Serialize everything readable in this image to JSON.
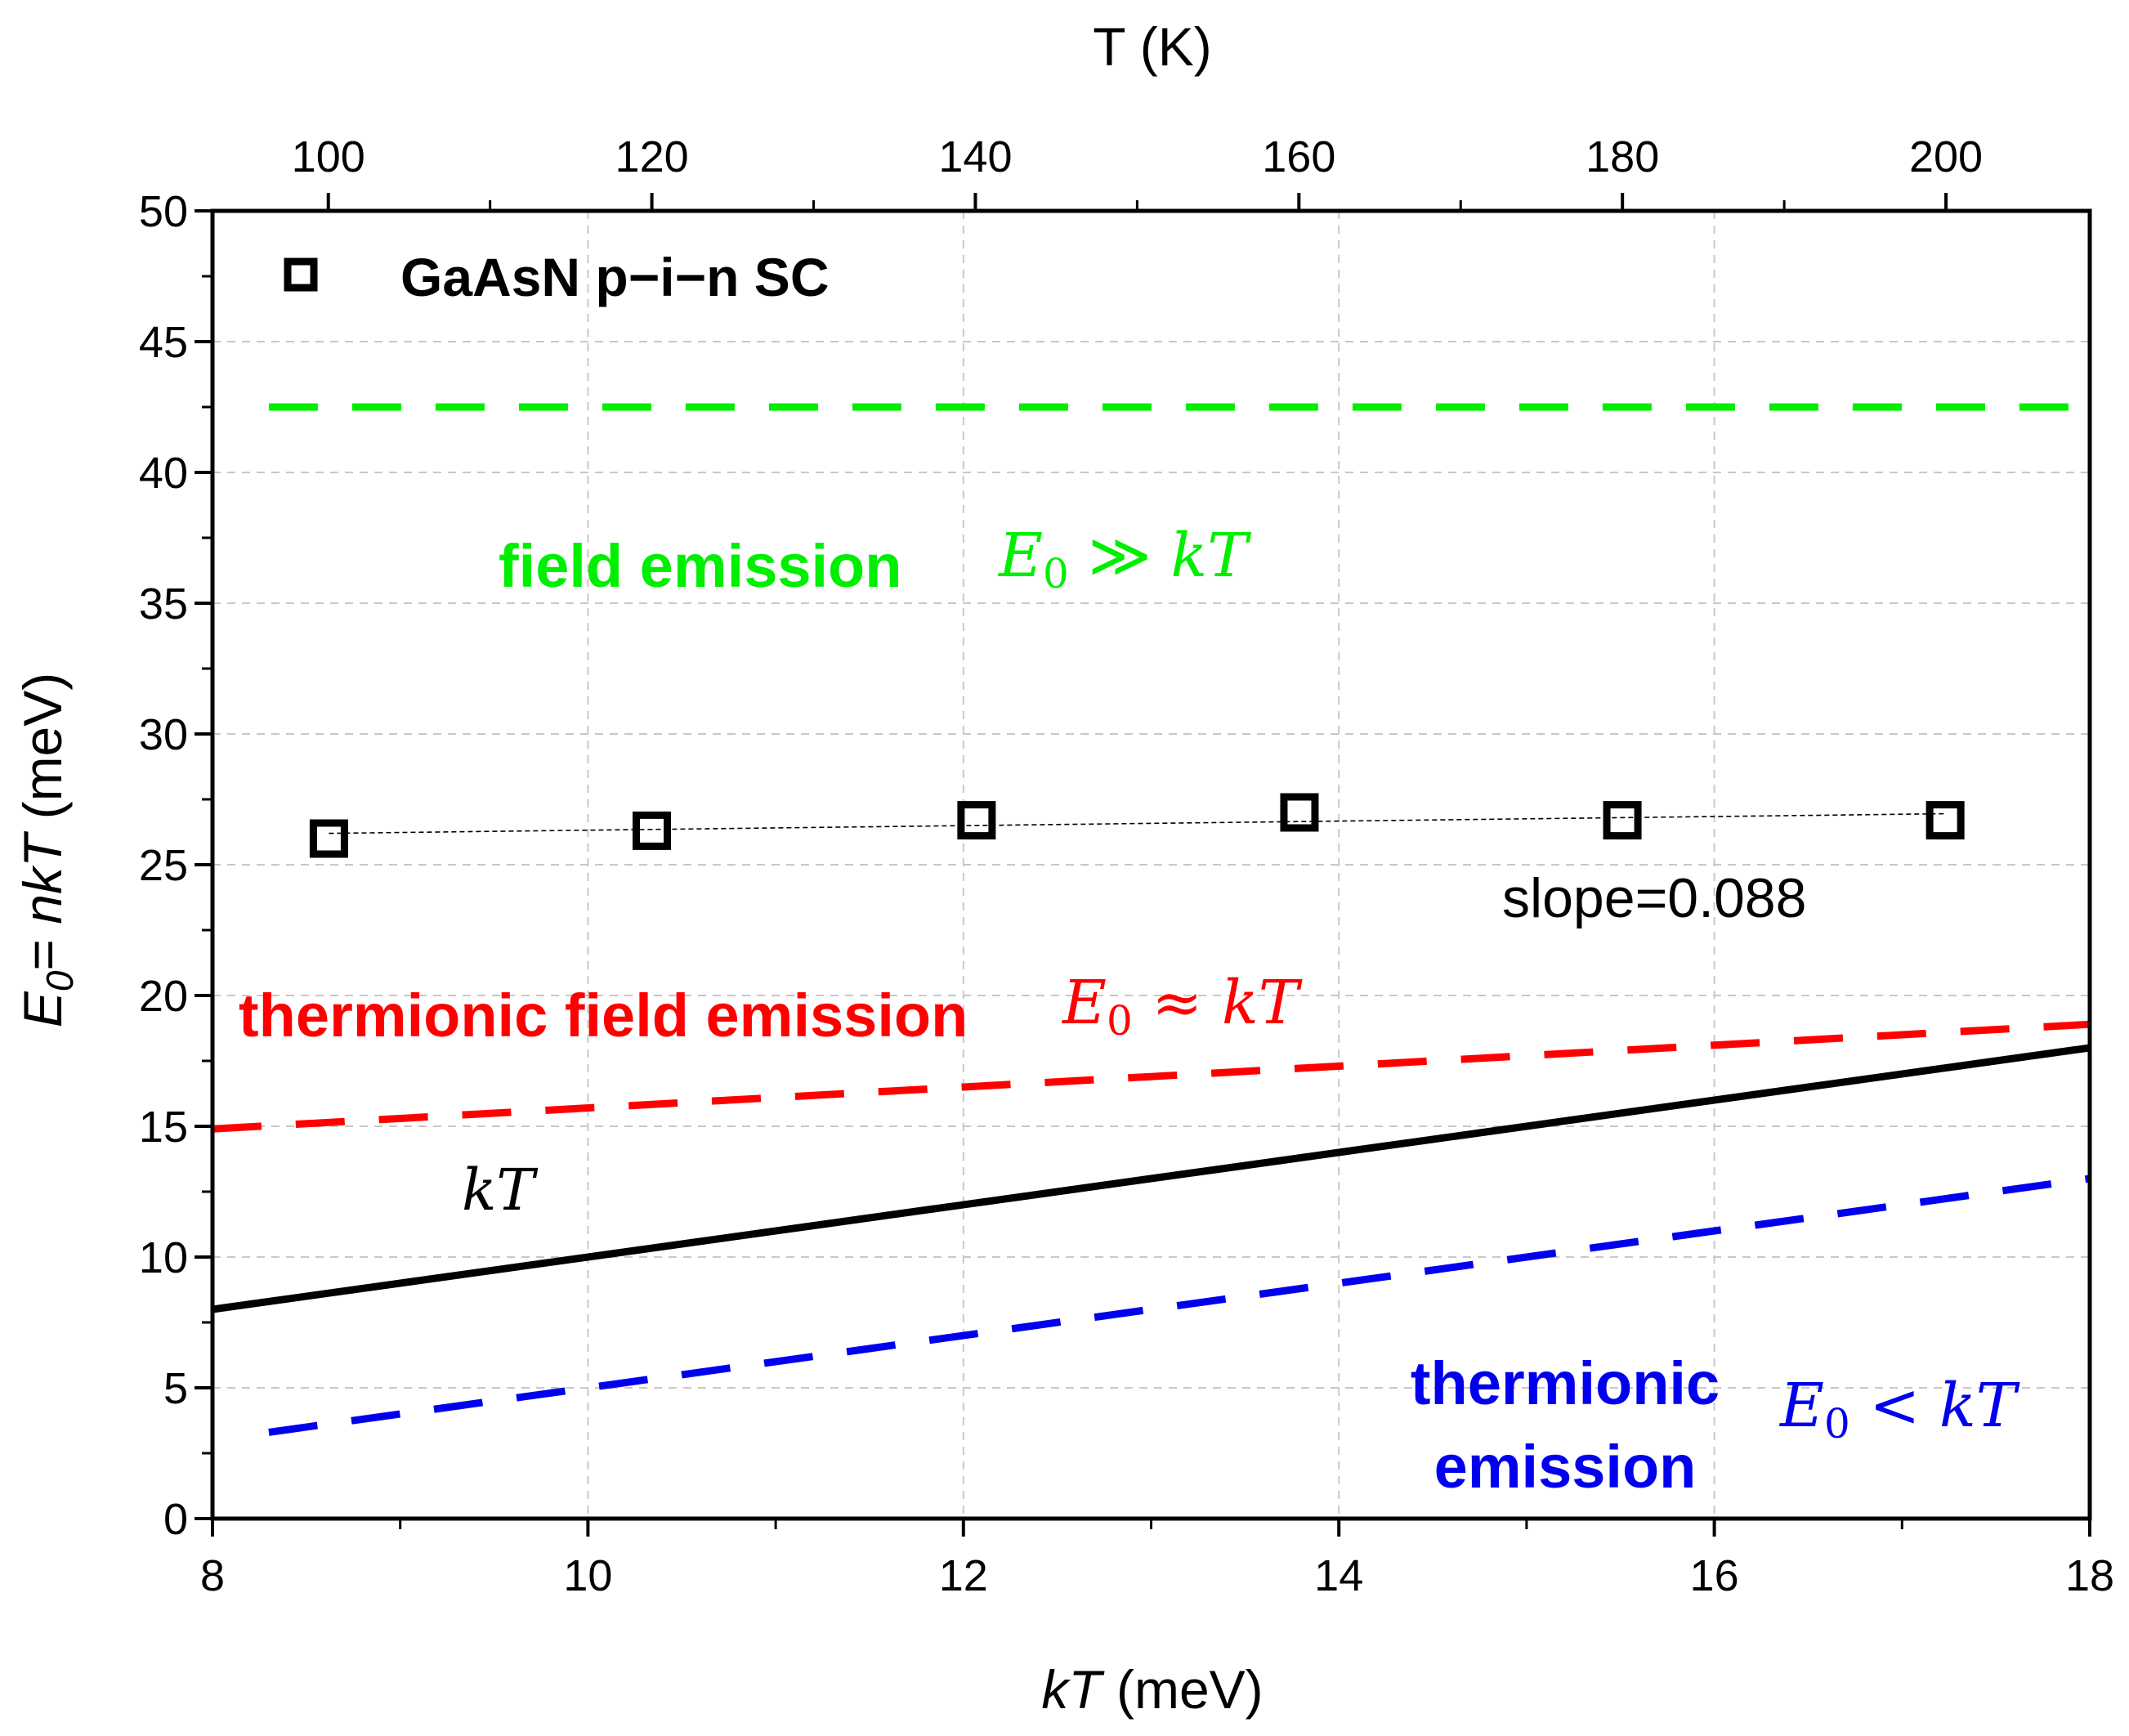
{
  "chart_data": {
    "type": "scatter",
    "title": "",
    "xlabel": {
      "italic": "kT",
      "normal": " (meV)"
    },
    "ylabel": {
      "base": "E",
      "sub": "0",
      "eq": "= ",
      "italic": "nkT",
      "normal": " (meV)"
    },
    "x2label": "T (K)",
    "xlim": [
      8,
      18
    ],
    "ylim": [
      0,
      50
    ],
    "x_ticks": [
      8,
      10,
      12,
      14,
      16,
      18
    ],
    "y_ticks": [
      0,
      5,
      10,
      15,
      20,
      25,
      30,
      35,
      40,
      45,
      50
    ],
    "x2_ticks": [
      100,
      120,
      140,
      160,
      180,
      200
    ],
    "kT_per_K": 0.08617,
    "grid": true,
    "series": [
      {
        "name": "GaAsN p−i−n SC",
        "marker": "open-square",
        "color": "#000000",
        "x": [
          8.62,
          10.34,
          12.07,
          13.79,
          15.51,
          17.23
        ],
        "y": [
          26.0,
          26.3,
          26.7,
          27.0,
          26.7,
          26.7
        ]
      }
    ],
    "lines": [
      {
        "name": "fit",
        "style": "thin-dashed",
        "color": "#000000",
        "x": [
          8.62,
          17.23
        ],
        "y": [
          26.2,
          26.95
        ]
      },
      {
        "name": "kT",
        "style": "solid",
        "color": "#000000",
        "x": [
          8,
          18
        ],
        "y": [
          8,
          18
        ]
      },
      {
        "name": "field-emission-boundary",
        "style": "dashed",
        "color": "#00ee00",
        "x": [
          8.3,
          18
        ],
        "y": [
          42.5,
          42.5
        ]
      },
      {
        "name": "thermionic-field-emission-boundary",
        "style": "dashed",
        "color": "#ff0000",
        "x": [
          8,
          18
        ],
        "y": [
          14.9,
          18.9
        ]
      },
      {
        "name": "thermionic-emission-boundary",
        "style": "dashed",
        "color": "#0000ee",
        "x": [
          8.3,
          18
        ],
        "y": [
          3.3,
          13.0
        ]
      }
    ],
    "legend": {
      "position": "top-left",
      "label": "GaAsN p−i−n SC"
    },
    "annotations": {
      "slope": "slope=0.088",
      "kT": "kT",
      "field_emission": "field emission",
      "field_emission_eq": {
        "E": "E",
        "sub": "0",
        "rel": " ≫ ",
        "kT": "kT"
      },
      "thermionic_field_emission": "thermionic field emission",
      "thermionic_field_emission_eq": {
        "E": "E",
        "sub": "0",
        "rel": " ≈ ",
        "kT": "kT"
      },
      "thermionic_emission_1": "thermionic",
      "thermionic_emission_2": "emission",
      "thermionic_emission_eq": {
        "E": "E",
        "sub": "0",
        "rel": " < ",
        "kT": "kT"
      }
    },
    "colors": {
      "green": "#00ee00",
      "red": "#ff0000",
      "blue": "#0000ee",
      "grid": "#c8c8c8"
    }
  }
}
